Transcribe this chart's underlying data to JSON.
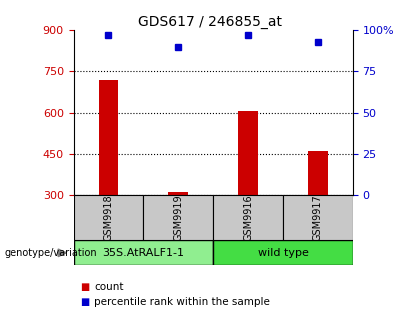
{
  "title": "GDS617 / 246855_at",
  "samples": [
    "GSM9918",
    "GSM9919",
    "GSM9916",
    "GSM9917"
  ],
  "counts": [
    720,
    312,
    605,
    460
  ],
  "percentiles": [
    97,
    90,
    97,
    93
  ],
  "ylim_left": [
    300,
    900
  ],
  "ylim_right": [
    0,
    100
  ],
  "yticks_left": [
    300,
    450,
    600,
    750,
    900
  ],
  "yticks_right": [
    0,
    25,
    50,
    75,
    100
  ],
  "ytick_labels_right": [
    "0",
    "25",
    "50",
    "75",
    "100%"
  ],
  "bar_color": "#cc0000",
  "dot_color": "#0000cc",
  "genotype_groups": [
    {
      "label": "35S.AtRALF1-1",
      "indices": [
        0,
        1
      ],
      "color": "#90ee90"
    },
    {
      "label": "wild type",
      "indices": [
        2,
        3
      ],
      "color": "#44dd44"
    }
  ],
  "legend_items": [
    {
      "label": "count",
      "color": "#cc0000"
    },
    {
      "label": "percentile rank within the sample",
      "color": "#0000cc"
    }
  ],
  "genotype_label": "genotype/variation",
  "background_color": "#ffffff",
  "sample_box_color": "#c8c8c8"
}
